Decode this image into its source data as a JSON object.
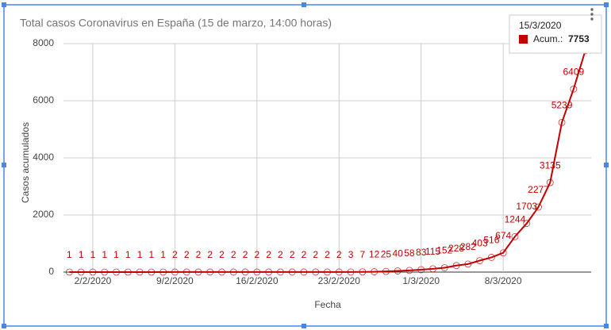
{
  "chart_data": {
    "type": "line",
    "title": "Total casos Coronavirus en España (15 de marzo, 14:00 horas)",
    "x_label": "Fecha",
    "y_label": "Casos acumulados",
    "categories": [
      null,
      null,
      "2/2/2020",
      null,
      null,
      null,
      null,
      null,
      null,
      "9/2/2020",
      null,
      null,
      null,
      null,
      null,
      null,
      "16/2/2020",
      null,
      null,
      null,
      null,
      null,
      null,
      "23/2/2020",
      null,
      null,
      null,
      null,
      null,
      null,
      "1/3/2020",
      null,
      null,
      null,
      null,
      null,
      null,
      "8/3/2020",
      null,
      null,
      null,
      null,
      null,
      null,
      null
    ],
    "series": [
      {
        "name": "Acum.:",
        "color": "#c00000",
        "values": [
          1,
          1,
          1,
          1,
          1,
          1,
          1,
          1,
          1,
          2,
          2,
          2,
          2,
          2,
          2,
          2,
          2,
          2,
          2,
          2,
          2,
          2,
          2,
          2,
          3,
          7,
          12,
          25,
          40,
          58,
          83,
          115,
          152,
          228,
          282,
          403,
          516,
          674,
          1244,
          1703,
          2277,
          3135,
          5239,
          6409,
          7753
        ]
      }
    ],
    "ylim": [
      0,
      8000
    ],
    "yticks": [
      0,
      2000,
      4000,
      6000,
      8000
    ],
    "grid": true,
    "tooltip": {
      "date": "15/3/2020"
    }
  }
}
